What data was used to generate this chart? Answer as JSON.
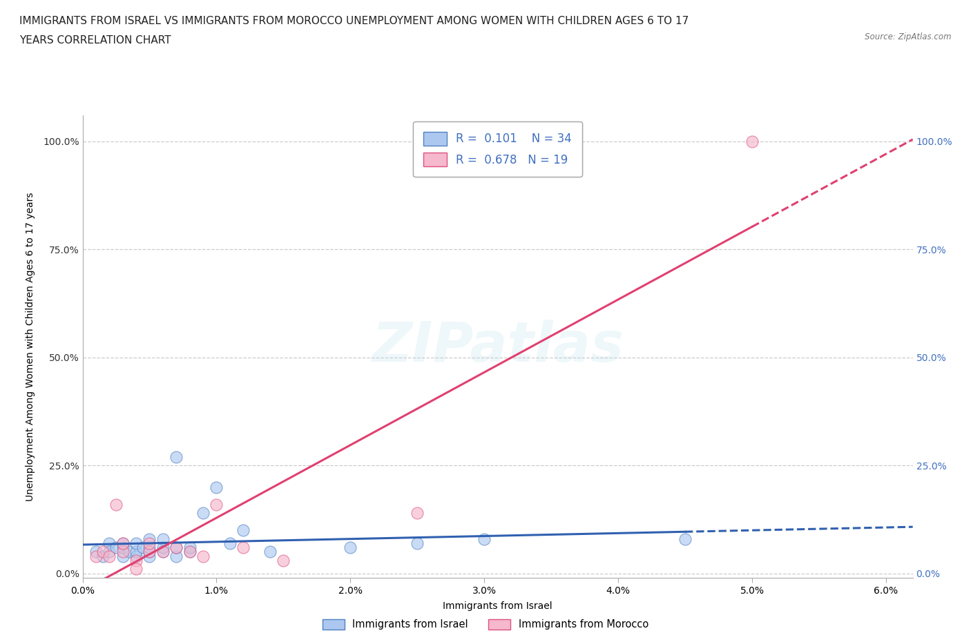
{
  "title_line1": "IMMIGRANTS FROM ISRAEL VS IMMIGRANTS FROM MOROCCO UNEMPLOYMENT AMONG WOMEN WITH CHILDREN AGES 6 TO 17",
  "title_line2": "YEARS CORRELATION CHART",
  "source": "Source: ZipAtlas.com",
  "xlabel": "Immigrants from Israel",
  "xlabel_legend": "Immigrants from Israel",
  "xlabel_legend2": "Immigrants from Morocco",
  "ylabel": "Unemployment Among Women with Children Ages 6 to 17 years",
  "xlim": [
    0.0,
    0.062
  ],
  "ylim": [
    -0.01,
    1.06
  ],
  "xticks": [
    0.0,
    0.01,
    0.02,
    0.03,
    0.04,
    0.05,
    0.06
  ],
  "xticklabels": [
    "0.0%",
    "1.0%",
    "2.0%",
    "3.0%",
    "4.0%",
    "5.0%",
    "6.0%"
  ],
  "yticks": [
    0.0,
    0.25,
    0.5,
    0.75,
    1.0
  ],
  "yticklabels": [
    "0.0%",
    "25.0%",
    "50.0%",
    "75.0%",
    "100.0%"
  ],
  "watermark": "ZIPatlas",
  "legend_R_blue": "0.101",
  "legend_N_blue": "34",
  "legend_R_pink": "0.678",
  "legend_N_pink": "19",
  "blue_scatter_color": "#adc8f0",
  "blue_edge_color": "#5080c0",
  "pink_scatter_color": "#f5b8cc",
  "pink_edge_color": "#e05080",
  "blue_line_color": "#3060b0",
  "pink_line_color": "#e04070",
  "israel_x": [
    0.001,
    0.0015,
    0.002,
    0.002,
    0.0025,
    0.003,
    0.003,
    0.003,
    0.0035,
    0.004,
    0.004,
    0.004,
    0.0045,
    0.005,
    0.005,
    0.005,
    0.005,
    0.006,
    0.006,
    0.006,
    0.007,
    0.007,
    0.007,
    0.008,
    0.008,
    0.009,
    0.01,
    0.011,
    0.012,
    0.014,
    0.02,
    0.025,
    0.03,
    0.045
  ],
  "israel_y": [
    0.05,
    0.04,
    0.07,
    0.05,
    0.06,
    0.04,
    0.06,
    0.07,
    0.05,
    0.04,
    0.05,
    0.07,
    0.06,
    0.04,
    0.05,
    0.06,
    0.08,
    0.05,
    0.06,
    0.08,
    0.04,
    0.06,
    0.27,
    0.05,
    0.06,
    0.14,
    0.2,
    0.07,
    0.1,
    0.05,
    0.06,
    0.07,
    0.08,
    0.08
  ],
  "morocco_x": [
    0.001,
    0.0015,
    0.002,
    0.0025,
    0.003,
    0.003,
    0.004,
    0.004,
    0.005,
    0.005,
    0.006,
    0.007,
    0.008,
    0.009,
    0.01,
    0.012,
    0.015,
    0.025,
    0.05
  ],
  "morocco_y": [
    0.04,
    0.05,
    0.04,
    0.16,
    0.05,
    0.07,
    0.03,
    0.01,
    0.05,
    0.07,
    0.05,
    0.06,
    0.05,
    0.04,
    0.16,
    0.06,
    0.03,
    0.14,
    1.0
  ],
  "blue_trend_start_x": 0.0,
  "blue_trend_end_x": 0.062,
  "pink_trend_start_x": 0.0,
  "pink_trend_end_x": 0.062,
  "background_color": "#ffffff",
  "grid_color": "#cccccc",
  "title_fontsize": 11,
  "axis_label_fontsize": 10,
  "tick_fontsize": 10,
  "legend_fontsize": 12
}
